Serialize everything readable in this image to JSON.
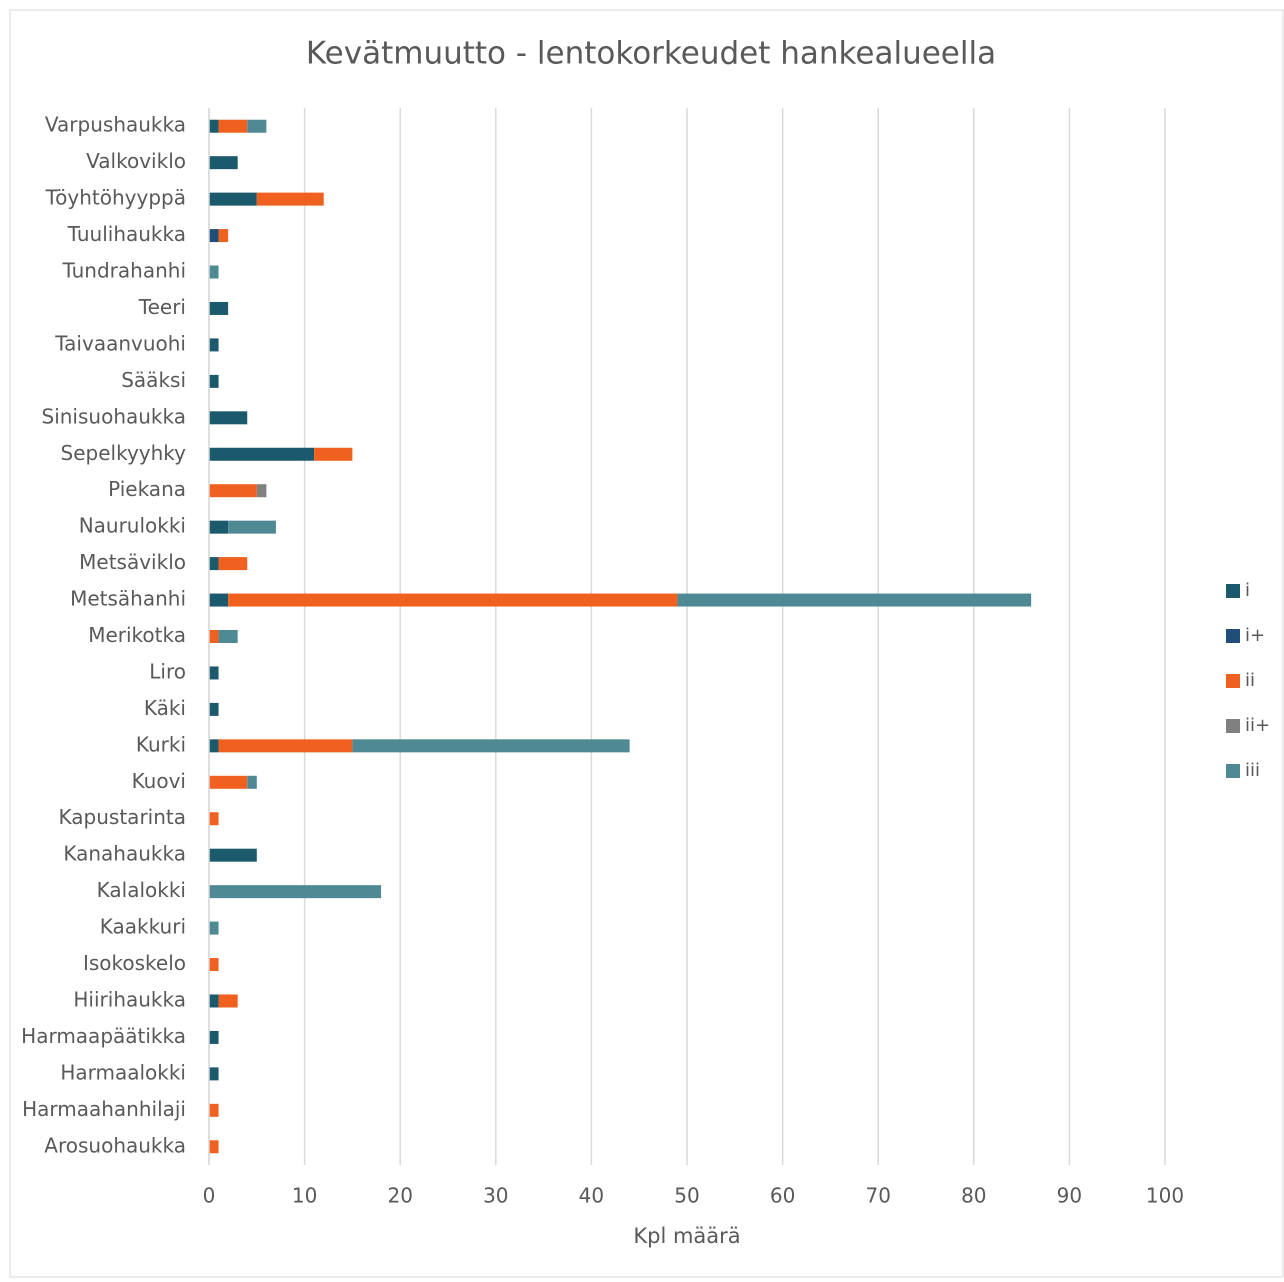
{
  "chart_data": {
    "type": "stacked_barh",
    "title": "Kevätmuutto - lentokorkeudet hankealueella",
    "x_label": "Kpl määrä",
    "categories": [
      "Varpushaukka",
      "Valkoviklo",
      "Töyhtöhyyppä",
      "Tuulihaukka",
      "Tundrahanhi",
      "Teeri",
      "Taivaanvuohi",
      "Sääksi",
      "Sinisuohaukka",
      "Sepelkyyhky",
      "Piekana",
      "Naurulokki",
      "Metsäviklo",
      "Metsähanhi",
      "Merikotka",
      "Liro",
      "Käki",
      "Kurki",
      "Kuovi",
      "Kapustarinta",
      "Kanahaukka",
      "Kalalokki",
      "Kaakkuri",
      "Isokoskelo",
      "Hiirihaukka",
      "Harmaapäätikka",
      "Harmaalokki",
      "Harmaahanhilaji",
      "Arosuohaukka"
    ],
    "series": [
      {
        "name": "i",
        "color": "#1b5a6c",
        "values": [
          1,
          3,
          5,
          0,
          0,
          2,
          1,
          1,
          4,
          11,
          0,
          2,
          1,
          2,
          0,
          1,
          1,
          1,
          0,
          0,
          5,
          0,
          0,
          0,
          1,
          1,
          1,
          0,
          0
        ]
      },
      {
        "name": "i+",
        "color": "#1f4e79",
        "values": [
          0,
          0,
          0,
          1,
          0,
          0,
          0,
          0,
          0,
          0,
          0,
          0,
          0,
          0,
          0,
          0,
          0,
          0,
          0,
          0,
          0,
          0,
          0,
          0,
          0,
          0,
          0,
          0,
          0
        ]
      },
      {
        "name": "ii",
        "color": "#f0601f",
        "values": [
          3,
          0,
          7,
          1,
          0,
          0,
          0,
          0,
          0,
          4,
          5,
          0,
          3,
          47,
          1,
          0,
          0,
          14,
          4,
          1,
          0,
          0,
          0,
          1,
          2,
          0,
          0,
          1,
          1
        ]
      },
      {
        "name": "ii+",
        "color": "#808080",
        "values": [
          0,
          0,
          0,
          0,
          0,
          0,
          0,
          0,
          0,
          0,
          1,
          0,
          0,
          0,
          0,
          0,
          0,
          0,
          0,
          0,
          0,
          0,
          0,
          0,
          0,
          0,
          0,
          0,
          0
        ]
      },
      {
        "name": "iii",
        "color": "#4f8a94",
        "values": [
          2,
          0,
          0,
          0,
          1,
          0,
          0,
          0,
          0,
          0,
          0,
          5,
          0,
          37,
          2,
          0,
          0,
          29,
          1,
          0,
          0,
          18,
          1,
          0,
          0,
          0,
          0,
          0,
          0
        ]
      }
    ],
    "xlim": [
      0,
      100
    ],
    "xticks": [
      0,
      10,
      20,
      30,
      40,
      50,
      60,
      70,
      80,
      90,
      100
    ],
    "grid": true,
    "legend": "right"
  }
}
